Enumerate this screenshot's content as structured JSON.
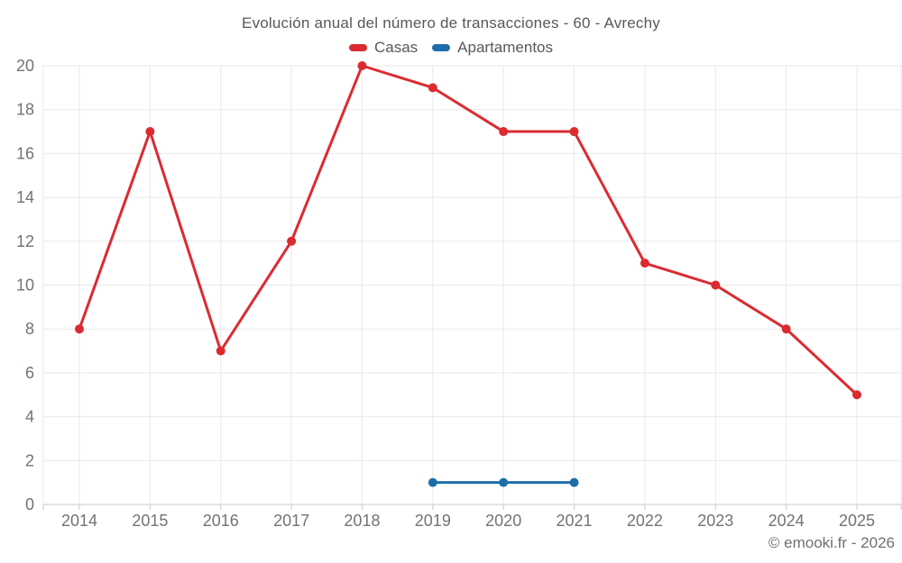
{
  "header": {
    "title": "Evolución anual del número de transacciones - 60 - Avrechy"
  },
  "footer": {
    "copyright": "© emooki.fr - 2026"
  },
  "chart_data": {
    "type": "line",
    "title": "Evolución anual del número de transacciones - 60 - Avrechy",
    "categories": [
      "2014",
      "2015",
      "2016",
      "2017",
      "2018",
      "2019",
      "2020",
      "2021",
      "2022",
      "2023",
      "2024",
      "2025"
    ],
    "series": [
      {
        "name": "Casas",
        "color": "#db2b30",
        "marker_radius": 5,
        "values": [
          8,
          17,
          7,
          12,
          20,
          19,
          17,
          17,
          11,
          10,
          8,
          5
        ]
      },
      {
        "name": "Apartamentos",
        "color": "#1c6fa8",
        "marker_radius": 5,
        "values": [
          null,
          null,
          null,
          null,
          null,
          1,
          1,
          1,
          null,
          null,
          null,
          null
        ]
      }
    ],
    "xlabel": "",
    "ylabel": "",
    "ylim": [
      0,
      20
    ],
    "ytick_step": 2,
    "yticks": [
      0,
      2,
      4,
      6,
      8,
      10,
      12,
      14,
      16,
      18,
      20
    ],
    "grid": true,
    "legend_position": "top",
    "colors": {
      "gridline": "#e8e9ea",
      "axis_line": "#c9cacb",
      "tick_label": "#717376"
    }
  }
}
